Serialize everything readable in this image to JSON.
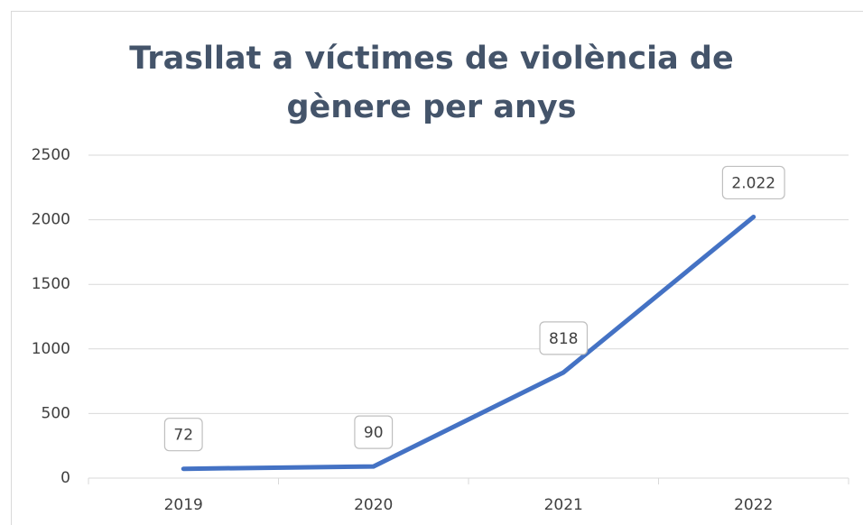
{
  "chart_data": {
    "type": "line",
    "title": "Trasllat a víctimes de violència de gènere per anys",
    "categories": [
      "2019",
      "2020",
      "2021",
      "2022"
    ],
    "series": [
      {
        "color": "#4472c4",
        "values": [
          72,
          90,
          818,
          2022
        ],
        "value_labels": [
          "72",
          "90",
          "818",
          "2.022"
        ]
      }
    ],
    "ylim": [
      0,
      2500
    ],
    "yticks": [
      0,
      500,
      1000,
      1500,
      2000,
      2500
    ],
    "grid": true
  }
}
